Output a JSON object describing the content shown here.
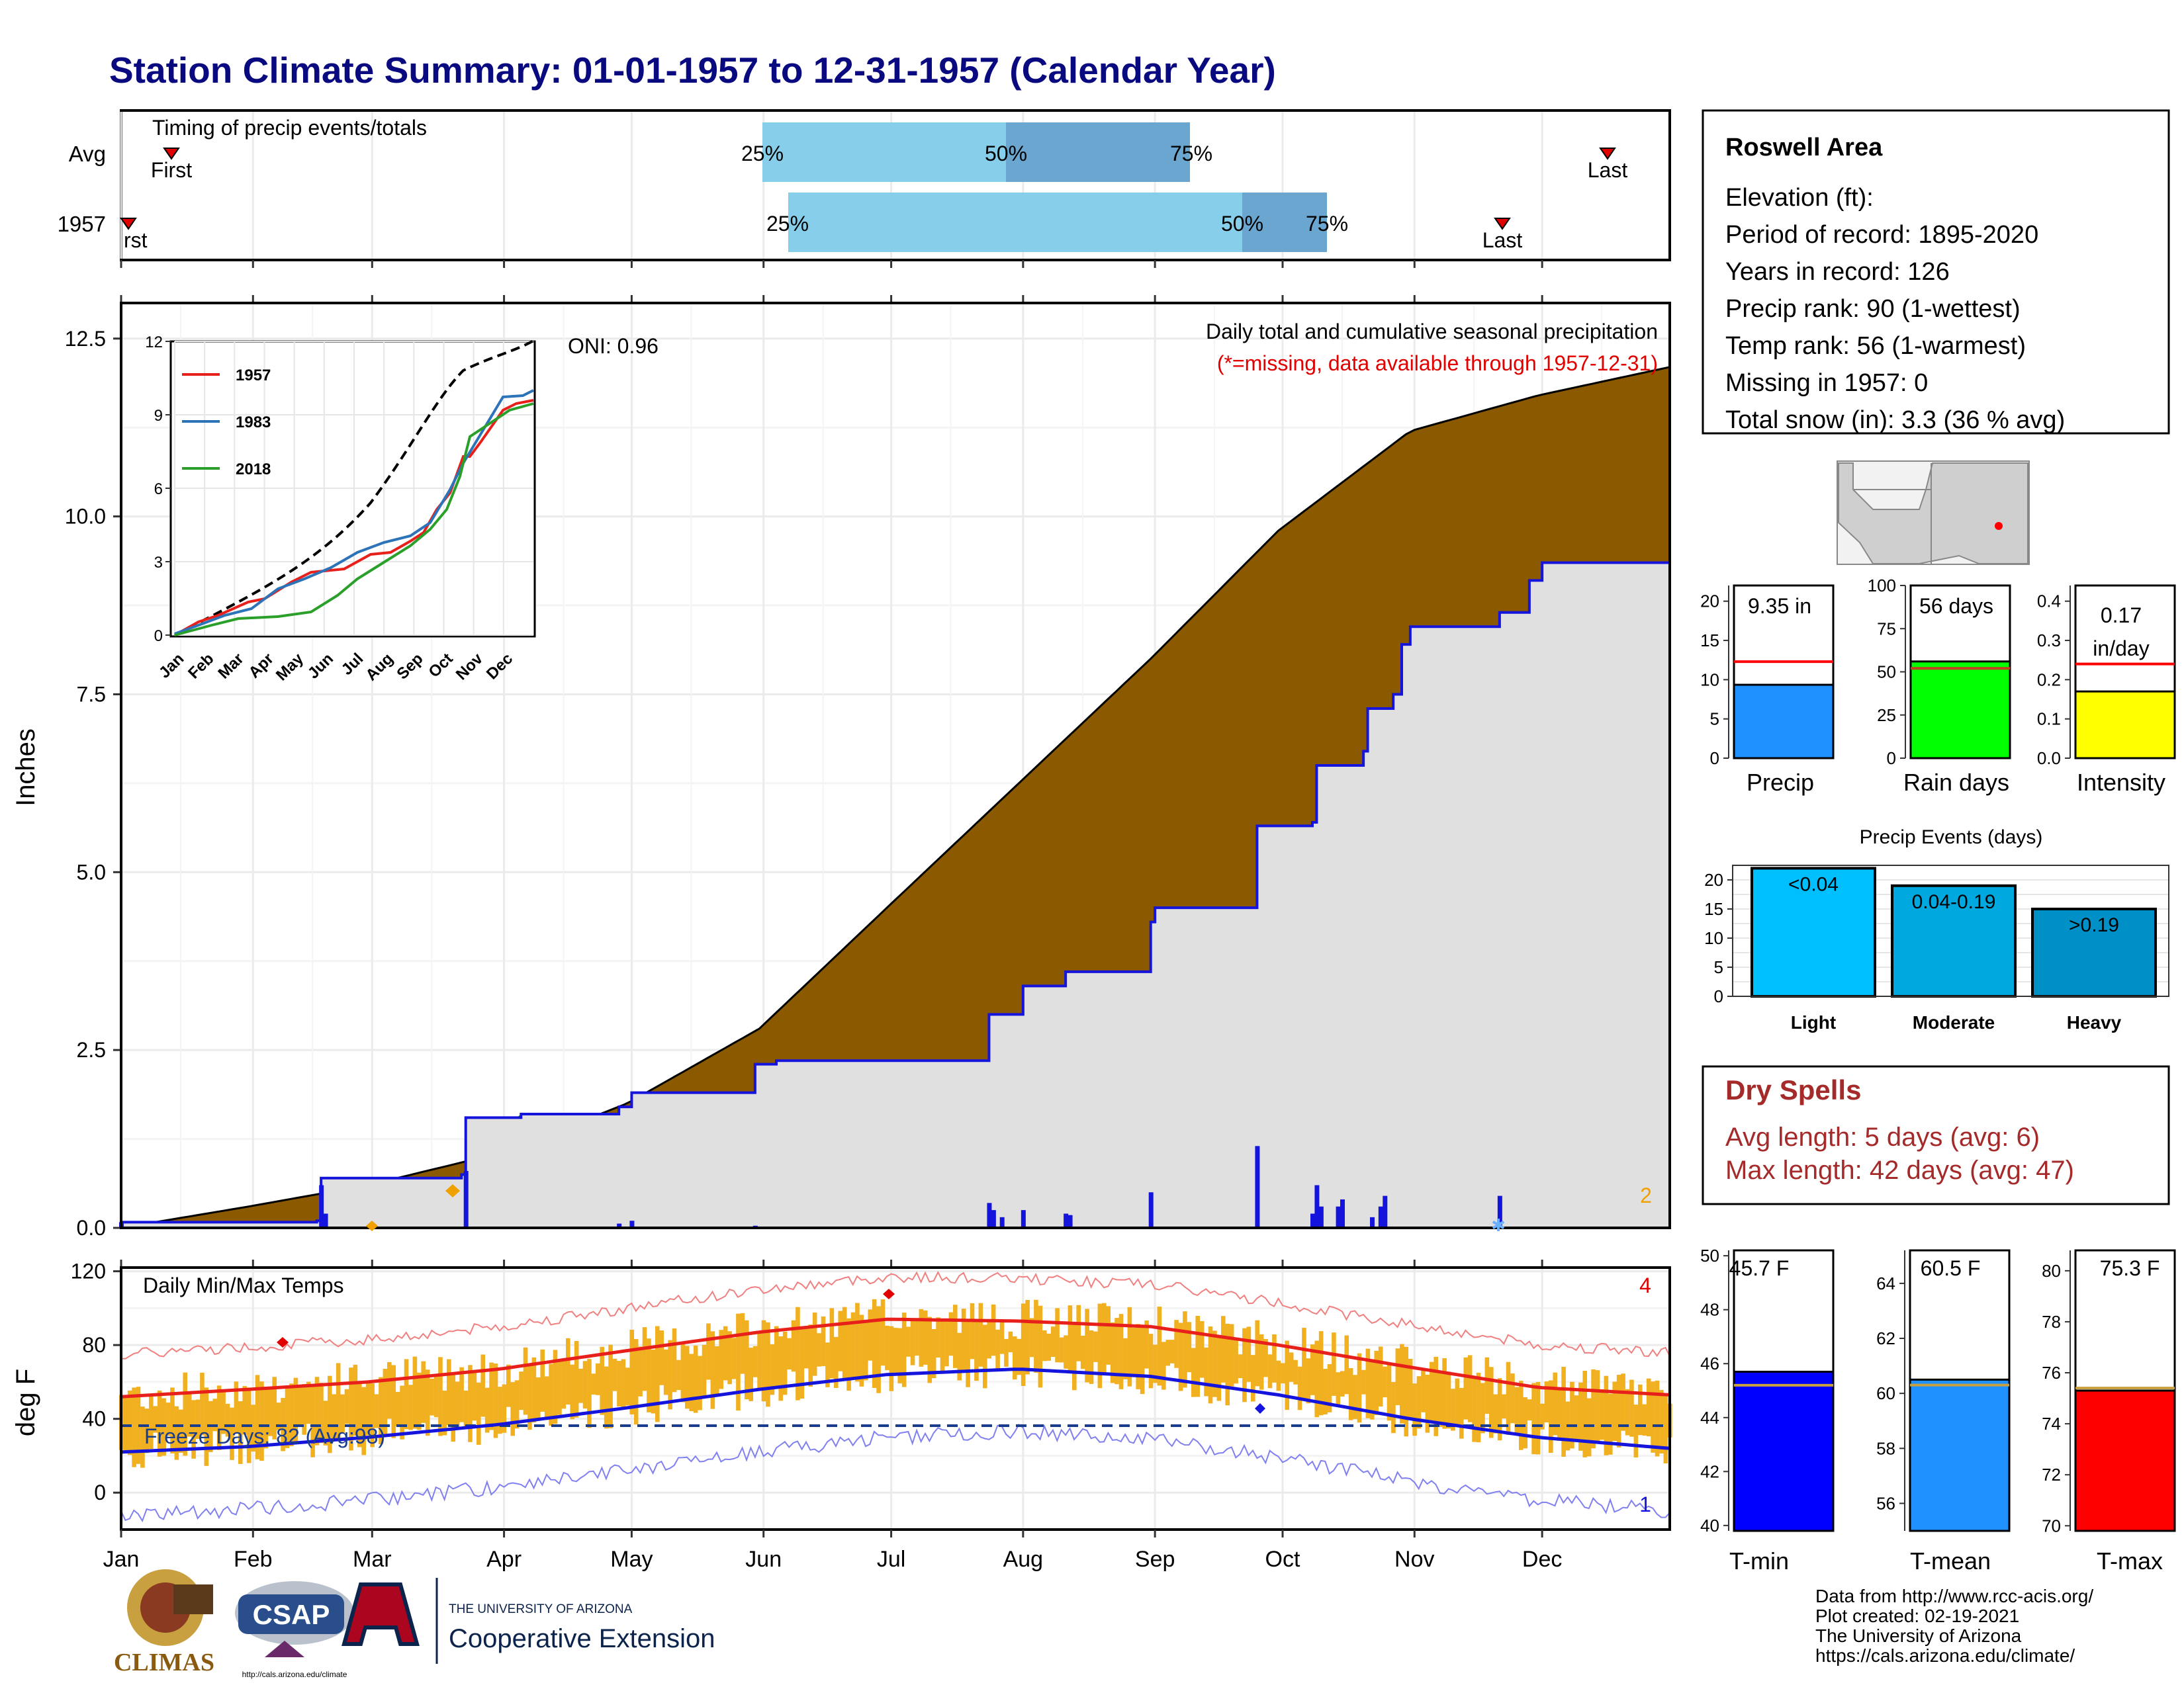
{
  "title": "Station Climate Summary: 01-01-1957 to 12-31-1957 (Calendar Year)",
  "months": [
    "Jan",
    "Feb",
    "Mar",
    "Apr",
    "May",
    "Jun",
    "Jul",
    "Aug",
    "Sep",
    "Oct",
    "Nov",
    "Dec"
  ],
  "timing": {
    "title": "Timing of precip events/totals",
    "rows": [
      "Avg",
      "1957"
    ],
    "first_label": "First",
    "first_label_clipped": "rst",
    "last_label": "Last",
    "p25": "25%",
    "p50": "50%",
    "p75": "75%"
  },
  "precip_panel": {
    "ylabel": "Inches",
    "note_title": "Daily total and cumulative seasonal precipitation",
    "note_missing": "(*=missing, data available through 1957-12-31)",
    "oni": "ONI: 0.96",
    "corner_count": "2",
    "yticks": [
      "0.0",
      "2.5",
      "5.0",
      "7.5",
      "10.0",
      "12.5"
    ]
  },
  "inset": {
    "yticks": [
      "0",
      "3",
      "6",
      "9",
      "12"
    ],
    "xticks": [
      "Jan",
      "Feb",
      "Mar",
      "Apr",
      "May",
      "Jun",
      "Jul",
      "Aug",
      "Sep",
      "Oct",
      "Nov",
      "Dec"
    ],
    "legend": [
      "1957",
      "1983",
      "2018"
    ]
  },
  "temp_panel": {
    "ylabel": "deg F",
    "title": "Daily Min/Max Temps",
    "freeze": "Freeze Days: 82 (Avg:98)",
    "count_top": "4",
    "count_bottom": "1",
    "yticks": [
      "0",
      "40",
      "80",
      "120"
    ]
  },
  "station": {
    "name": "Roswell Area",
    "lines": [
      "Elevation (ft):",
      "Period of record: 1895-2020",
      "Years in record: 126",
      "Precip rank: 90 (1-wettest)",
      "Temp rank: 56 (1-warmest)",
      "Missing in 1957: 0",
      "Total snow (in): 3.3 (36 % avg)"
    ]
  },
  "mini_bars": {
    "precip": {
      "label": "Precip",
      "value_text": "9.35 in",
      "yticks": [
        "0",
        "5",
        "10",
        "15",
        "20"
      ]
    },
    "raindays": {
      "label": "Rain days",
      "value_text": "56 days",
      "yticks": [
        "0",
        "25",
        "50",
        "75",
        "100"
      ]
    },
    "intensity": {
      "label": "Intensity",
      "value_text": "0.17",
      "value_text2": "in/day",
      "yticks": [
        "0.0",
        "0.1",
        "0.2",
        "0.3",
        "0.4"
      ]
    }
  },
  "events": {
    "title": "Precip Events (days)",
    "categories": [
      "Light",
      "Moderate",
      "Heavy"
    ],
    "bar_labels": [
      "<0.04",
      "0.04-0.19",
      ">0.19"
    ],
    "yticks": [
      "0",
      "5",
      "10",
      "15",
      "20"
    ]
  },
  "dry_spells": {
    "title": "Dry Spells",
    "avg": "Avg length: 5 days (avg: 6)",
    "max": "Max length: 42 days (avg: 47)"
  },
  "temp_bars": {
    "tmin": {
      "label": "T-min",
      "value_text": "45.7 F",
      "yticks": [
        "40",
        "42",
        "44",
        "46",
        "48",
        "50"
      ]
    },
    "tmean": {
      "label": "T-mean",
      "value_text": "60.5 F",
      "yticks": [
        "56",
        "58",
        "60",
        "62",
        "64"
      ]
    },
    "tmax": {
      "label": "T-max",
      "value_text": "75.3 F",
      "yticks": [
        "70",
        "72",
        "74",
        "76",
        "78",
        "80"
      ]
    }
  },
  "credits": [
    "Data from http://www.rcc-acis.org/",
    "Plot created: 02-19-2021",
    "The University of Arizona",
    "https://cals.arizona.edu/climate/"
  ],
  "logos": {
    "climas": "CLIMAS",
    "csap": "CSAP",
    "csap_url": "http://cals.arizona.edu/climate",
    "ua_line1": "THE UNIVERSITY OF ARIZONA",
    "ua_line2": "Cooperative Extension"
  },
  "chart_data": [
    {
      "type": "area",
      "title": "Daily total and cumulative seasonal precipitation",
      "ylabel": "Inches",
      "ylim": [
        0,
        13
      ],
      "x_months": [
        "Jan",
        "Feb",
        "Mar",
        "Apr",
        "May",
        "Jun",
        "Jul",
        "Aug",
        "Sep",
        "Oct",
        "Nov",
        "Dec"
      ],
      "series": [
        {
          "name": "average cumulative",
          "color": "#8b5a00",
          "points_doy_value": [
            [
              1,
              0
            ],
            [
              31,
              0.3
            ],
            [
              59,
              0.6
            ],
            [
              90,
              1.05
            ],
            [
              120,
              1.75
            ],
            [
              151,
              2.8
            ],
            [
              181,
              4.5
            ],
            [
              212,
              6.25
            ],
            [
              243,
              8.0
            ],
            [
              273,
              9.8
            ],
            [
              304,
              11.2
            ],
            [
              334,
              11.7
            ],
            [
              365,
              12.1
            ]
          ]
        },
        {
          "name": "1957 cumulative",
          "color": "#1414dc",
          "points_doy_value": [
            [
              1,
              0.08
            ],
            [
              47,
              0.1
            ],
            [
              48,
              0.7
            ],
            [
              81,
              0.75
            ],
            [
              82,
              1.55
            ],
            [
              95,
              1.6
            ],
            [
              118,
              1.7
            ],
            [
              121,
              1.9
            ],
            [
              150,
              2.3
            ],
            [
              155,
              2.35
            ],
            [
              203,
              2.35
            ],
            [
              205,
              3.0
            ],
            [
              213,
              3.4
            ],
            [
              223,
              3.6
            ],
            [
              243,
              4.3
            ],
            [
              244,
              4.5
            ],
            [
              267,
              4.5
            ],
            [
              268,
              5.65
            ],
            [
              281,
              5.7
            ],
            [
              282,
              6.5
            ],
            [
              293,
              6.7
            ],
            [
              294,
              7.3
            ],
            [
              300,
              7.5
            ],
            [
              302,
              8.2
            ],
            [
              304,
              8.45
            ],
            [
              325,
              8.65
            ],
            [
              332,
              9.1
            ],
            [
              335,
              9.35
            ],
            [
              365,
              9.35
            ]
          ]
        }
      ],
      "daily_bars_doy_value": [
        [
          1,
          0.08
        ],
        [
          48,
          0.6
        ],
        [
          49,
          0.2
        ],
        [
          82,
          0.8
        ],
        [
          118,
          0.06
        ],
        [
          121,
          0.1
        ],
        [
          150,
          0.03
        ],
        [
          205,
          0.35
        ],
        [
          206,
          0.25
        ],
        [
          208,
          0.15
        ],
        [
          213,
          0.25
        ],
        [
          223,
          0.2
        ],
        [
          224,
          0.18
        ],
        [
          243,
          0.5
        ],
        [
          268,
          1.15
        ],
        [
          281,
          0.2
        ],
        [
          282,
          0.6
        ],
        [
          283,
          0.3
        ],
        [
          287,
          0.3
        ],
        [
          288,
          0.4
        ],
        [
          295,
          0.15
        ],
        [
          297,
          0.3
        ],
        [
          298,
          0.45
        ],
        [
          325,
          0.45
        ]
      ]
    },
    {
      "type": "line",
      "title": "Cumulative precipitation (inset)",
      "ylim": [
        0,
        12
      ],
      "series": [
        {
          "name": "1957",
          "color": "#e8201c"
        },
        {
          "name": "1983",
          "color": "#2c73b8"
        },
        {
          "name": "2018",
          "color": "#2aa02a"
        }
      ]
    },
    {
      "type": "bar",
      "title": "Precip Events (days)",
      "categories": [
        "Light",
        "Moderate",
        "Heavy"
      ],
      "values": [
        22,
        19,
        15
      ],
      "ylim": [
        0,
        22
      ]
    },
    {
      "type": "bar",
      "categories": [
        "Precip",
        "Rain days",
        "Intensity"
      ],
      "values": [
        9.35,
        56,
        0.17
      ],
      "averages": [
        12.3,
        52,
        0.24
      ]
    },
    {
      "type": "bar",
      "categories": [
        "T-min",
        "T-mean",
        "T-max"
      ],
      "values": [
        45.7,
        60.5,
        75.3
      ],
      "averages": [
        45.2,
        60.3,
        75.4
      ]
    },
    {
      "type": "line",
      "title": "Daily Min/Max Temps",
      "ylabel": "deg F",
      "ylim": [
        -20,
        120
      ],
      "series": [
        {
          "name": "avg max",
          "color": "#e8201c",
          "points_doy_value": [
            [
              1,
              52
            ],
            [
              31,
              56
            ],
            [
              59,
              60
            ],
            [
              90,
              67
            ],
            [
              120,
              77
            ],
            [
              151,
              87
            ],
            [
              181,
              94
            ],
            [
              212,
              93
            ],
            [
              243,
              90
            ],
            [
              273,
              80
            ],
            [
              304,
              68
            ],
            [
              334,
              57
            ],
            [
              365,
              53
            ]
          ]
        },
        {
          "name": "avg min",
          "color": "#1414dc",
          "points_doy_value": [
            [
              1,
              22
            ],
            [
              31,
              25
            ],
            [
              59,
              30
            ],
            [
              90,
              37
            ],
            [
              120,
              46
            ],
            [
              151,
              56
            ],
            [
              181,
              64
            ],
            [
              212,
              67
            ],
            [
              243,
              63
            ],
            [
              273,
              53
            ],
            [
              304,
              40
            ],
            [
              334,
              30
            ],
            [
              365,
              24
            ]
          ]
        }
      ]
    }
  ]
}
